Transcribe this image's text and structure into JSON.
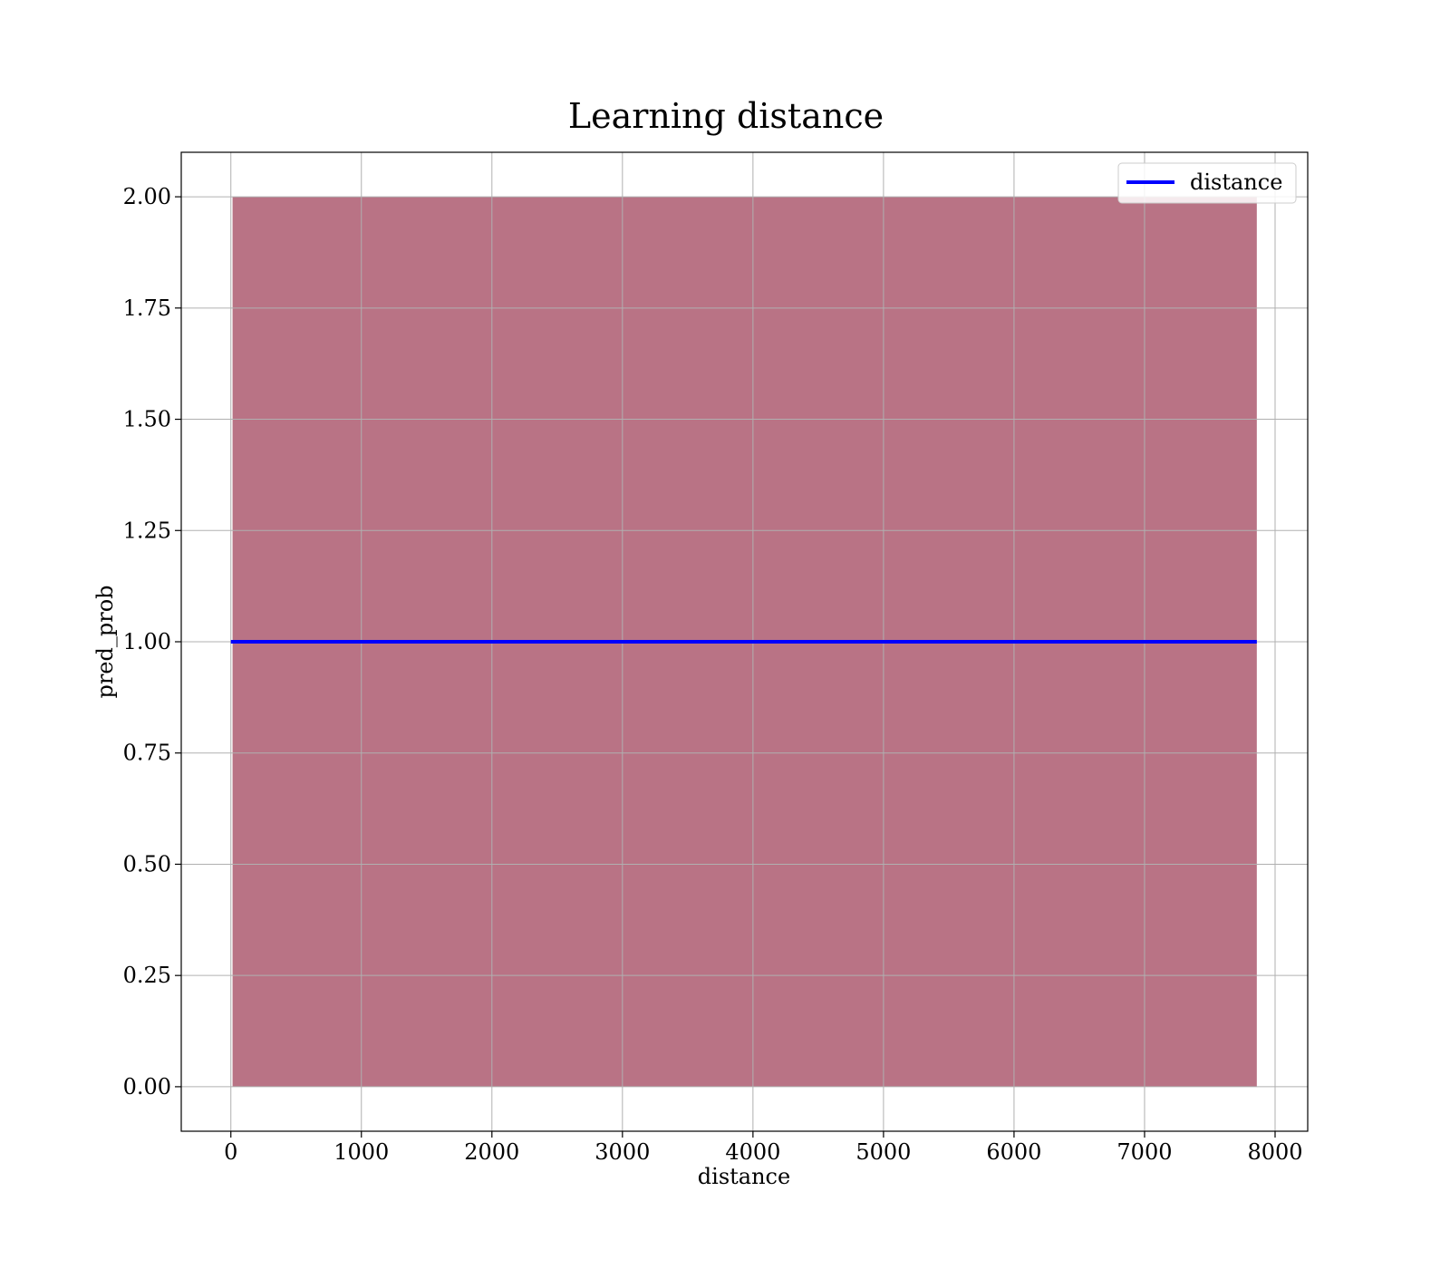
{
  "chart_data": {
    "type": "line",
    "title": "Learning distance",
    "xlabel": "distance",
    "ylabel": "pred_prob",
    "xlim": [
      -380,
      8250
    ],
    "ylim": [
      -0.1,
      2.1
    ],
    "xticks": [
      0,
      1000,
      2000,
      3000,
      4000,
      5000,
      6000,
      7000,
      8000
    ],
    "xtick_labels": [
      "0",
      "1000",
      "2000",
      "3000",
      "4000",
      "5000",
      "6000",
      "7000",
      "8000"
    ],
    "yticks": [
      0.0,
      0.25,
      0.5,
      0.75,
      1.0,
      1.25,
      1.5,
      1.75,
      2.0
    ],
    "ytick_labels": [
      "0.00",
      "0.25",
      "0.50",
      "0.75",
      "1.00",
      "1.25",
      "1.50",
      "1.75",
      "2.00"
    ],
    "grid": true,
    "legend_position": "top-right",
    "series": [
      {
        "name": "distance",
        "color": "#0000ff",
        "x": [
          0,
          7860
        ],
        "y": [
          1.0,
          1.0
        ]
      }
    ],
    "band": {
      "color": "#800020",
      "opacity": 0.55,
      "x_start": 13,
      "x_end": 7860,
      "y_low": 0.0,
      "y_high": 2.0
    }
  }
}
